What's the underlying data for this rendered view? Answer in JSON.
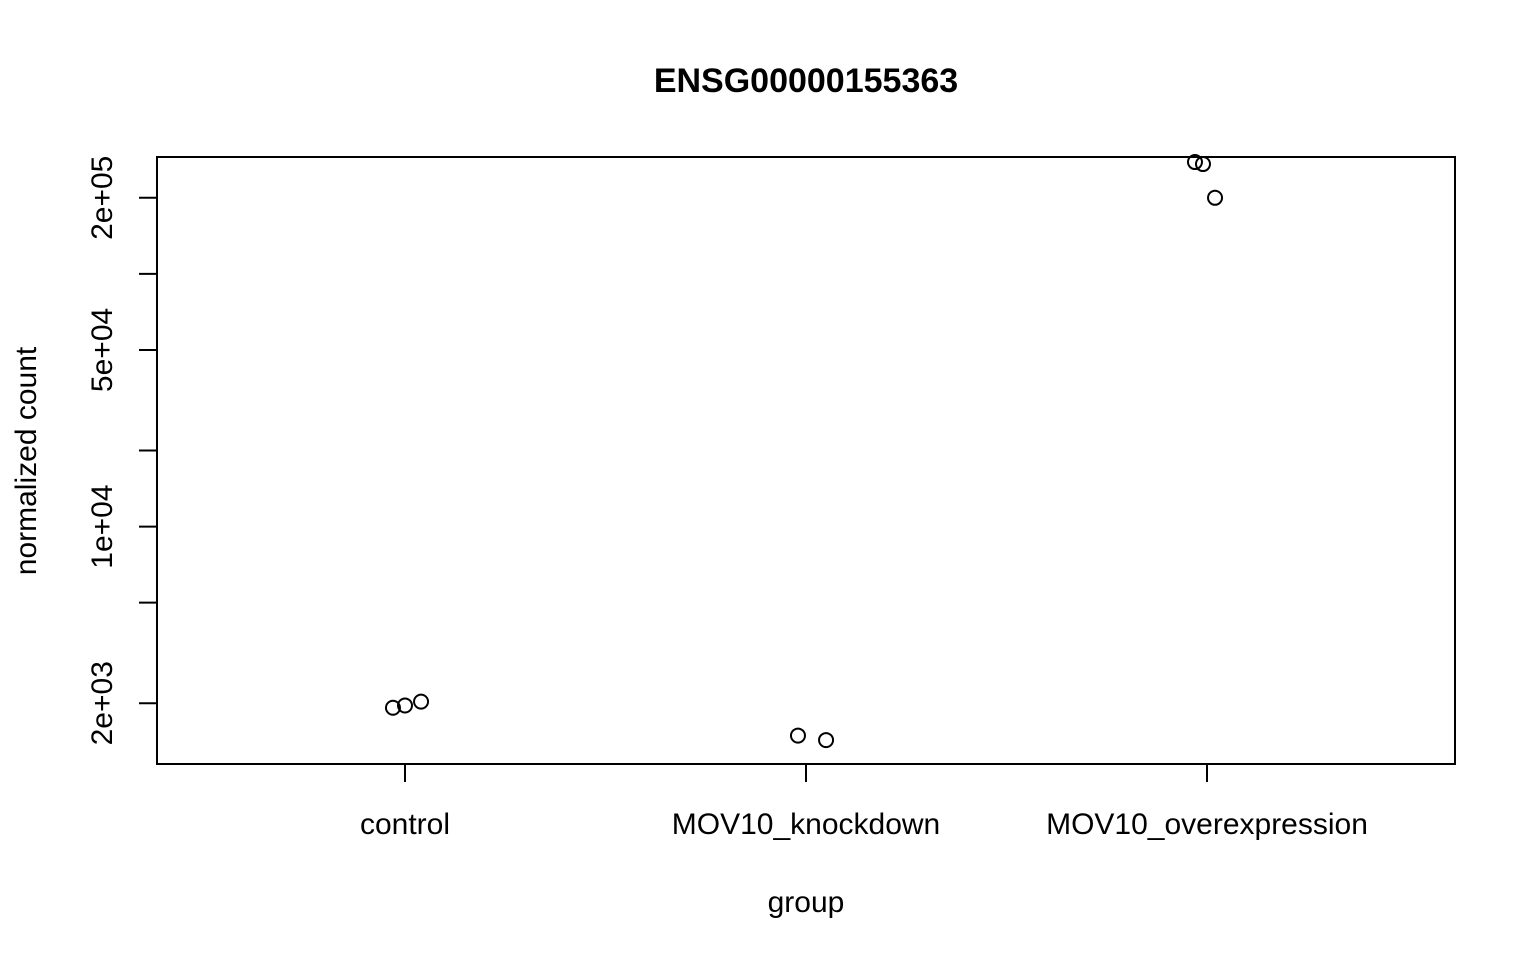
{
  "chart_data": {
    "type": "scatter",
    "title": "ENSG00000155363",
    "xlabel": "group",
    "ylabel": "normalized count",
    "y_scale": "log",
    "ylim": [
      1150,
      290000
    ],
    "grid": false,
    "legend": "none",
    "categories": [
      "control",
      "MOV10_knockdown",
      "MOV10_overexpression"
    ],
    "y_ticks": [
      2000,
      5000,
      10000,
      20000,
      50000,
      100000,
      200000
    ],
    "y_tick_labels": [
      "2e+03",
      "",
      "1e+04",
      "",
      "5e+04",
      "",
      "2e+05"
    ],
    "points": [
      {
        "group": "control",
        "x": 0.97,
        "y": 1920
      },
      {
        "group": "control",
        "x": 1.0,
        "y": 1960
      },
      {
        "group": "control",
        "x": 1.04,
        "y": 2030
      },
      {
        "group": "MOV10_knockdown",
        "x": 1.98,
        "y": 1490
      },
      {
        "group": "MOV10_knockdown",
        "x": 2.05,
        "y": 1430
      },
      {
        "group": "MOV10_overexpression",
        "x": 2.97,
        "y": 277000
      },
      {
        "group": "MOV10_overexpression",
        "x": 2.99,
        "y": 272000
      },
      {
        "group": "MOV10_overexpression",
        "x": 3.02,
        "y": 200000
      }
    ]
  }
}
